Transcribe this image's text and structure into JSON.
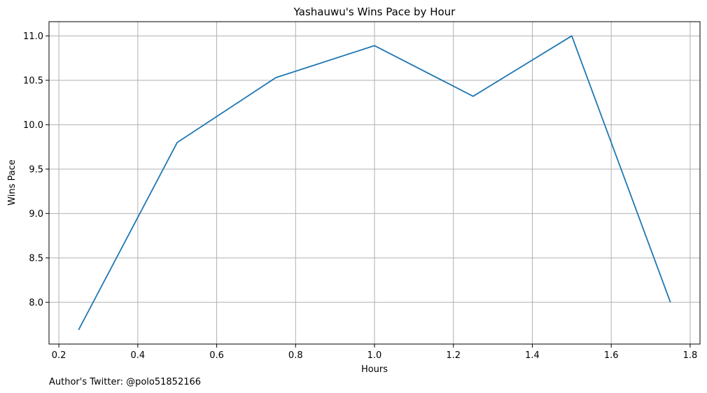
{
  "chart_data": {
    "type": "line",
    "title": "Yashauwu's Wins Pace by Hour",
    "xlabel": "Hours",
    "ylabel": "Wins Pace",
    "footnote": "Author's Twitter: @polo51852166",
    "xlim": [
      0.175,
      1.825
    ],
    "ylim": [
      7.53,
      11.16
    ],
    "x_ticks": [
      0.2,
      0.4,
      0.6,
      0.8,
      1.0,
      1.2,
      1.4,
      1.6,
      1.8
    ],
    "x_tick_labels": [
      "0.2",
      "0.4",
      "0.6",
      "0.8",
      "1.0",
      "1.2",
      "1.4",
      "1.6",
      "1.8"
    ],
    "y_ticks": [
      8.0,
      8.5,
      9.0,
      9.5,
      10.0,
      10.5,
      11.0
    ],
    "y_tick_labels": [
      "8.0",
      "8.5",
      "9.0",
      "9.5",
      "10.0",
      "10.5",
      "11.0"
    ],
    "grid": true,
    "line_color": "#1f77b4",
    "grid_color": "#b0b0b0",
    "series": [
      {
        "x": [
          0.25,
          0.5,
          0.75,
          1.0,
          1.25,
          1.5,
          1.75
        ],
        "values": [
          7.69,
          9.8,
          10.53,
          10.89,
          10.32,
          11.0,
          8.0
        ]
      }
    ]
  }
}
